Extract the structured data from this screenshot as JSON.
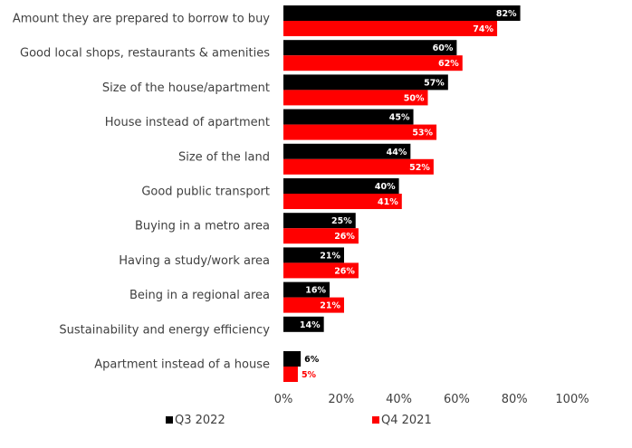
{
  "chart_data": {
    "type": "bar",
    "orientation": "horizontal",
    "categories": [
      "Amount they are prepared to borrow to buy",
      "Good local shops, restaurants & amenities",
      "Size of the house/apartment",
      "House instead of apartment",
      "Size of the land",
      "Good public transport",
      "Buying in a metro area",
      "Having a study/work area",
      "Being in a regional area",
      "Sustainability and energy efficiency",
      "Apartment instead of a house"
    ],
    "series": [
      {
        "name": "Q3 2022",
        "color": "#000000",
        "label_color": "#ffffff",
        "values": [
          82,
          60,
          57,
          45,
          44,
          40,
          25,
          21,
          16,
          14,
          6
        ],
        "labels": [
          "82%",
          "60%",
          "57%",
          "45%",
          "44%",
          "40%",
          "25%",
          "21%",
          "16%",
          "14%",
          "6%"
        ]
      },
      {
        "name": "Q4 2021",
        "color": "#ff0000",
        "label_color": "#ffffff",
        "values": [
          74,
          62,
          50,
          53,
          52,
          41,
          26,
          26,
          21,
          null,
          5
        ],
        "labels": [
          "74%",
          "62%",
          "50%",
          "53%",
          "52%",
          "41%",
          "26%",
          "26%",
          "21%",
          "",
          "5%"
        ]
      }
    ],
    "xlim": [
      0,
      100
    ],
    "xticks": [
      {
        "value": 0,
        "label": "0%"
      },
      {
        "value": 20,
        "label": "20%"
      },
      {
        "value": 40,
        "label": "40%"
      },
      {
        "value": 60,
        "label": "60%"
      },
      {
        "value": 80,
        "label": "80%"
      },
      {
        "value": 100,
        "label": "100%"
      }
    ],
    "grid": false,
    "legend": {
      "position": "bottom",
      "entries": [
        {
          "name": "Q3 2022",
          "color": "#000000"
        },
        {
          "name": "Q4 2021",
          "color": "#ff0000"
        }
      ]
    },
    "title": "",
    "xlabel": "",
    "ylabel": ""
  }
}
